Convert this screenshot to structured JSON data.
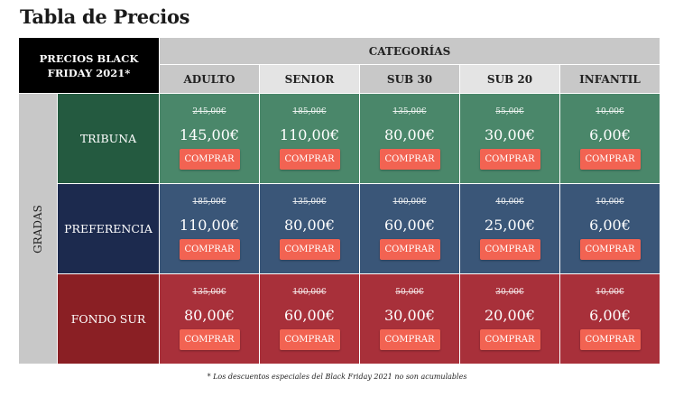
{
  "title": "Tabla de Precios",
  "corner": "PRECIOS BLACK FRIDAY 2021*",
  "categories_label": "CATEGORÍAS",
  "side_label": "GRADAS",
  "columns": [
    "ADULTO",
    "SENIOR",
    "SUB 30",
    "SUB 20",
    "INFANTIL"
  ],
  "buy_label": "COMPRAR",
  "rows": [
    {
      "name": "TRIBUNA",
      "header_color": "#245a40",
      "cell_color": "#4a876a",
      "old": [
        "245,00€",
        "185,00€",
        "135,00€",
        "55,00€",
        "10,00€"
      ],
      "new": [
        "145,00€",
        "110,00€",
        "80,00€",
        "30,00€",
        "6,00€"
      ]
    },
    {
      "name": "PREFERENCIA",
      "header_color": "#1c2a4e",
      "cell_color": "#3a5678",
      "old": [
        "185,00€",
        "135,00€",
        "100,00€",
        "40,00€",
        "10,00€"
      ],
      "new": [
        "110,00€",
        "80,00€",
        "60,00€",
        "25,00€",
        "6,00€"
      ]
    },
    {
      "name": "FONDO SUR",
      "header_color": "#8a1f24",
      "cell_color": "#a8303a",
      "old": [
        "135,00€",
        "100,00€",
        "50,00€",
        "30,00€",
        "10,00€"
      ],
      "new": [
        "80,00€",
        "60,00€",
        "30,00€",
        "20,00€",
        "6,00€"
      ]
    }
  ],
  "footnote": "* Los descuentos especiales del Black Friday 2021 no son acumulables"
}
